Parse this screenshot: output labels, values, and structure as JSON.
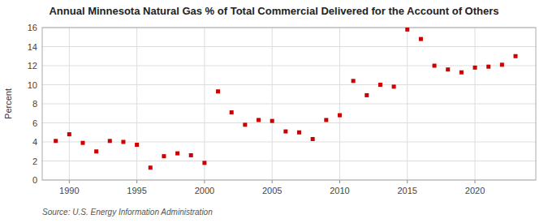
{
  "chart_data": {
    "type": "scatter",
    "title": "Annual Minnesota Natural Gas % of Total Commercial Delivered for the Account of Others",
    "y_label": "Percent",
    "source": "Source: U.S. Energy Information Administration",
    "x": [
      1989,
      1990,
      1991,
      1992,
      1993,
      1994,
      1995,
      1996,
      1997,
      1998,
      1999,
      2000,
      2001,
      2002,
      2003,
      2004,
      2005,
      2006,
      2007,
      2008,
      2009,
      2010,
      2011,
      2012,
      2013,
      2014,
      2015,
      2016,
      2017,
      2018,
      2019,
      2020,
      2021,
      2022,
      2023
    ],
    "values": [
      4.1,
      4.8,
      3.9,
      3.0,
      4.1,
      4.0,
      3.7,
      1.3,
      2.5,
      2.8,
      2.6,
      1.8,
      9.3,
      7.1,
      5.8,
      6.3,
      6.2,
      5.1,
      5.0,
      4.3,
      6.3,
      6.8,
      10.4,
      8.9,
      10.0,
      9.8,
      15.8,
      14.8,
      12.0,
      11.6,
      11.3,
      11.8,
      11.9,
      12.1,
      13.0
    ],
    "color": "#cc0000",
    "marker": "square",
    "xlim": [
      1988.0,
      2024.5
    ],
    "ylim": [
      0,
      16
    ],
    "xticks": [
      1990,
      1995,
      2000,
      2005,
      2010,
      2015,
      2020
    ],
    "yticks": [
      0,
      2,
      4,
      6,
      8,
      10,
      12,
      14,
      16
    ],
    "grid": true
  }
}
